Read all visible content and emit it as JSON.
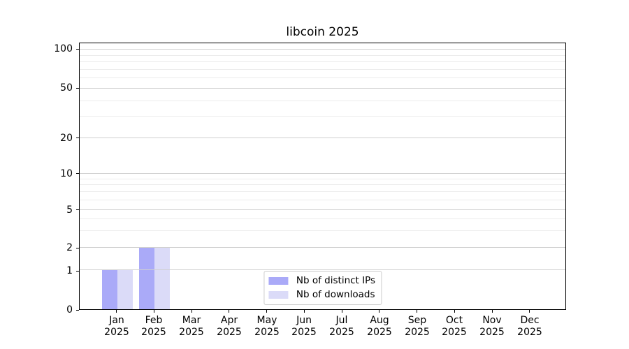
{
  "figure": {
    "title": "libcoin 2025"
  },
  "colors": {
    "bar_distinct_ips": "#aaaaf8",
    "bar_downloads": "#dbdbf8",
    "grid_major": "#d0d0d0",
    "grid_minor": "#ececec",
    "spine": "#000000",
    "legend_border": "#cccccc",
    "background": "#ffffff"
  },
  "legend": {
    "position": "lower center",
    "items": [
      "Nb of distinct IPs",
      "Nb of downloads"
    ]
  },
  "chart_data": {
    "type": "bar",
    "title": "libcoin 2025",
    "categories": [
      "Jan 2025",
      "Feb 2025",
      "Mar 2025",
      "Apr 2025",
      "May 2025",
      "Jun 2025",
      "Jul 2025",
      "Aug 2025",
      "Sep 2025",
      "Oct 2025",
      "Nov 2025",
      "Dec 2025"
    ],
    "series": [
      {
        "name": "Nb of distinct IPs",
        "color": "#aaaaf8",
        "values": [
          1,
          2,
          0,
          0,
          0,
          0,
          0,
          0,
          0,
          0,
          0,
          0
        ]
      },
      {
        "name": "Nb of downloads",
        "color": "#dbdbf8",
        "values": [
          1,
          2,
          0,
          0,
          0,
          0,
          0,
          0,
          0,
          0,
          0,
          0
        ]
      }
    ],
    "xlabel": "",
    "ylabel": "",
    "yscale": "symlog-asinh (linear near 0, logarithmic above)",
    "ylim": [
      0,
      112
    ],
    "grid": {
      "axis": "y",
      "major": true,
      "minor": true,
      "drawn_above_bars": true
    },
    "legend_position": "lower center",
    "y_axis": {
      "ticks": [
        {
          "v": 0,
          "frac": 0.0
        },
        {
          "v": 1,
          "frac": 0.1462
        },
        {
          "v": 2,
          "frac": 0.2311
        },
        {
          "v": 5,
          "frac": 0.3734
        },
        {
          "v": 10,
          "frac": 0.5104
        },
        {
          "v": 20,
          "frac": 0.6423
        },
        {
          "v": 50,
          "frac": 0.829
        },
        {
          "v": 100,
          "frac": 0.9765
        }
      ],
      "minor_ticks": [
        {
          "v": 3,
          "frac": 0.294
        },
        {
          "v": 4,
          "frac": 0.3387
        },
        {
          "v": 6,
          "frac": 0.4094
        },
        {
          "v": 7,
          "frac": 0.4399
        },
        {
          "v": 8,
          "frac": 0.4663
        },
        {
          "v": 9,
          "frac": 0.4895
        },
        {
          "v": 30,
          "frac": 0.7249
        },
        {
          "v": 40,
          "frac": 0.7835
        },
        {
          "v": 60,
          "frac": 0.8678
        },
        {
          "v": 70,
          "frac": 0.9006
        },
        {
          "v": 80,
          "frac": 0.929
        },
        {
          "v": 90,
          "frac": 0.954
        }
      ]
    }
  }
}
